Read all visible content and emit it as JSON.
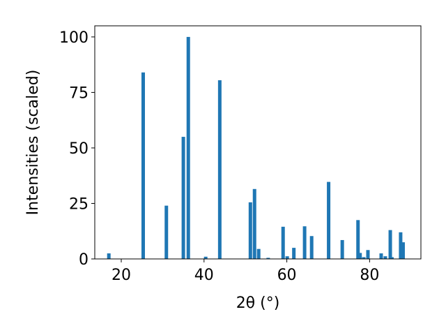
{
  "chart_data": {
    "type": "bar",
    "title": "",
    "xlabel": "2θ (°)",
    "ylabel": "Intensities (scaled)",
    "xlim": [
      13.6,
      92.4
    ],
    "ylim": [
      0,
      105
    ],
    "xticks": [
      20,
      40,
      60,
      80
    ],
    "yticks": [
      0,
      25,
      50,
      75,
      100
    ],
    "bar_color": "#1f77b4",
    "grid": false,
    "legend": "none",
    "series": [
      {
        "x": [
          17.0,
          25.3,
          30.9,
          35.0,
          36.2,
          40.4,
          43.8,
          51.2,
          52.2,
          53.2,
          55.5,
          59.1,
          60.1,
          61.7,
          64.3,
          66.0,
          70.1,
          73.4,
          77.2,
          77.7,
          78.6,
          79.6,
          82.8,
          83.8,
          85.0,
          85.4,
          87.5,
          88.1
        ],
        "values": [
          2.5,
          84,
          24,
          55,
          100,
          1,
          80.5,
          25.5,
          31.5,
          4.5,
          0.5,
          14.5,
          1.2,
          5,
          14.7,
          10.3,
          34.7,
          8.5,
          17.5,
          2.7,
          0.8,
          4,
          2.5,
          1.2,
          13,
          0.8,
          12,
          7.5
        ]
      }
    ]
  }
}
